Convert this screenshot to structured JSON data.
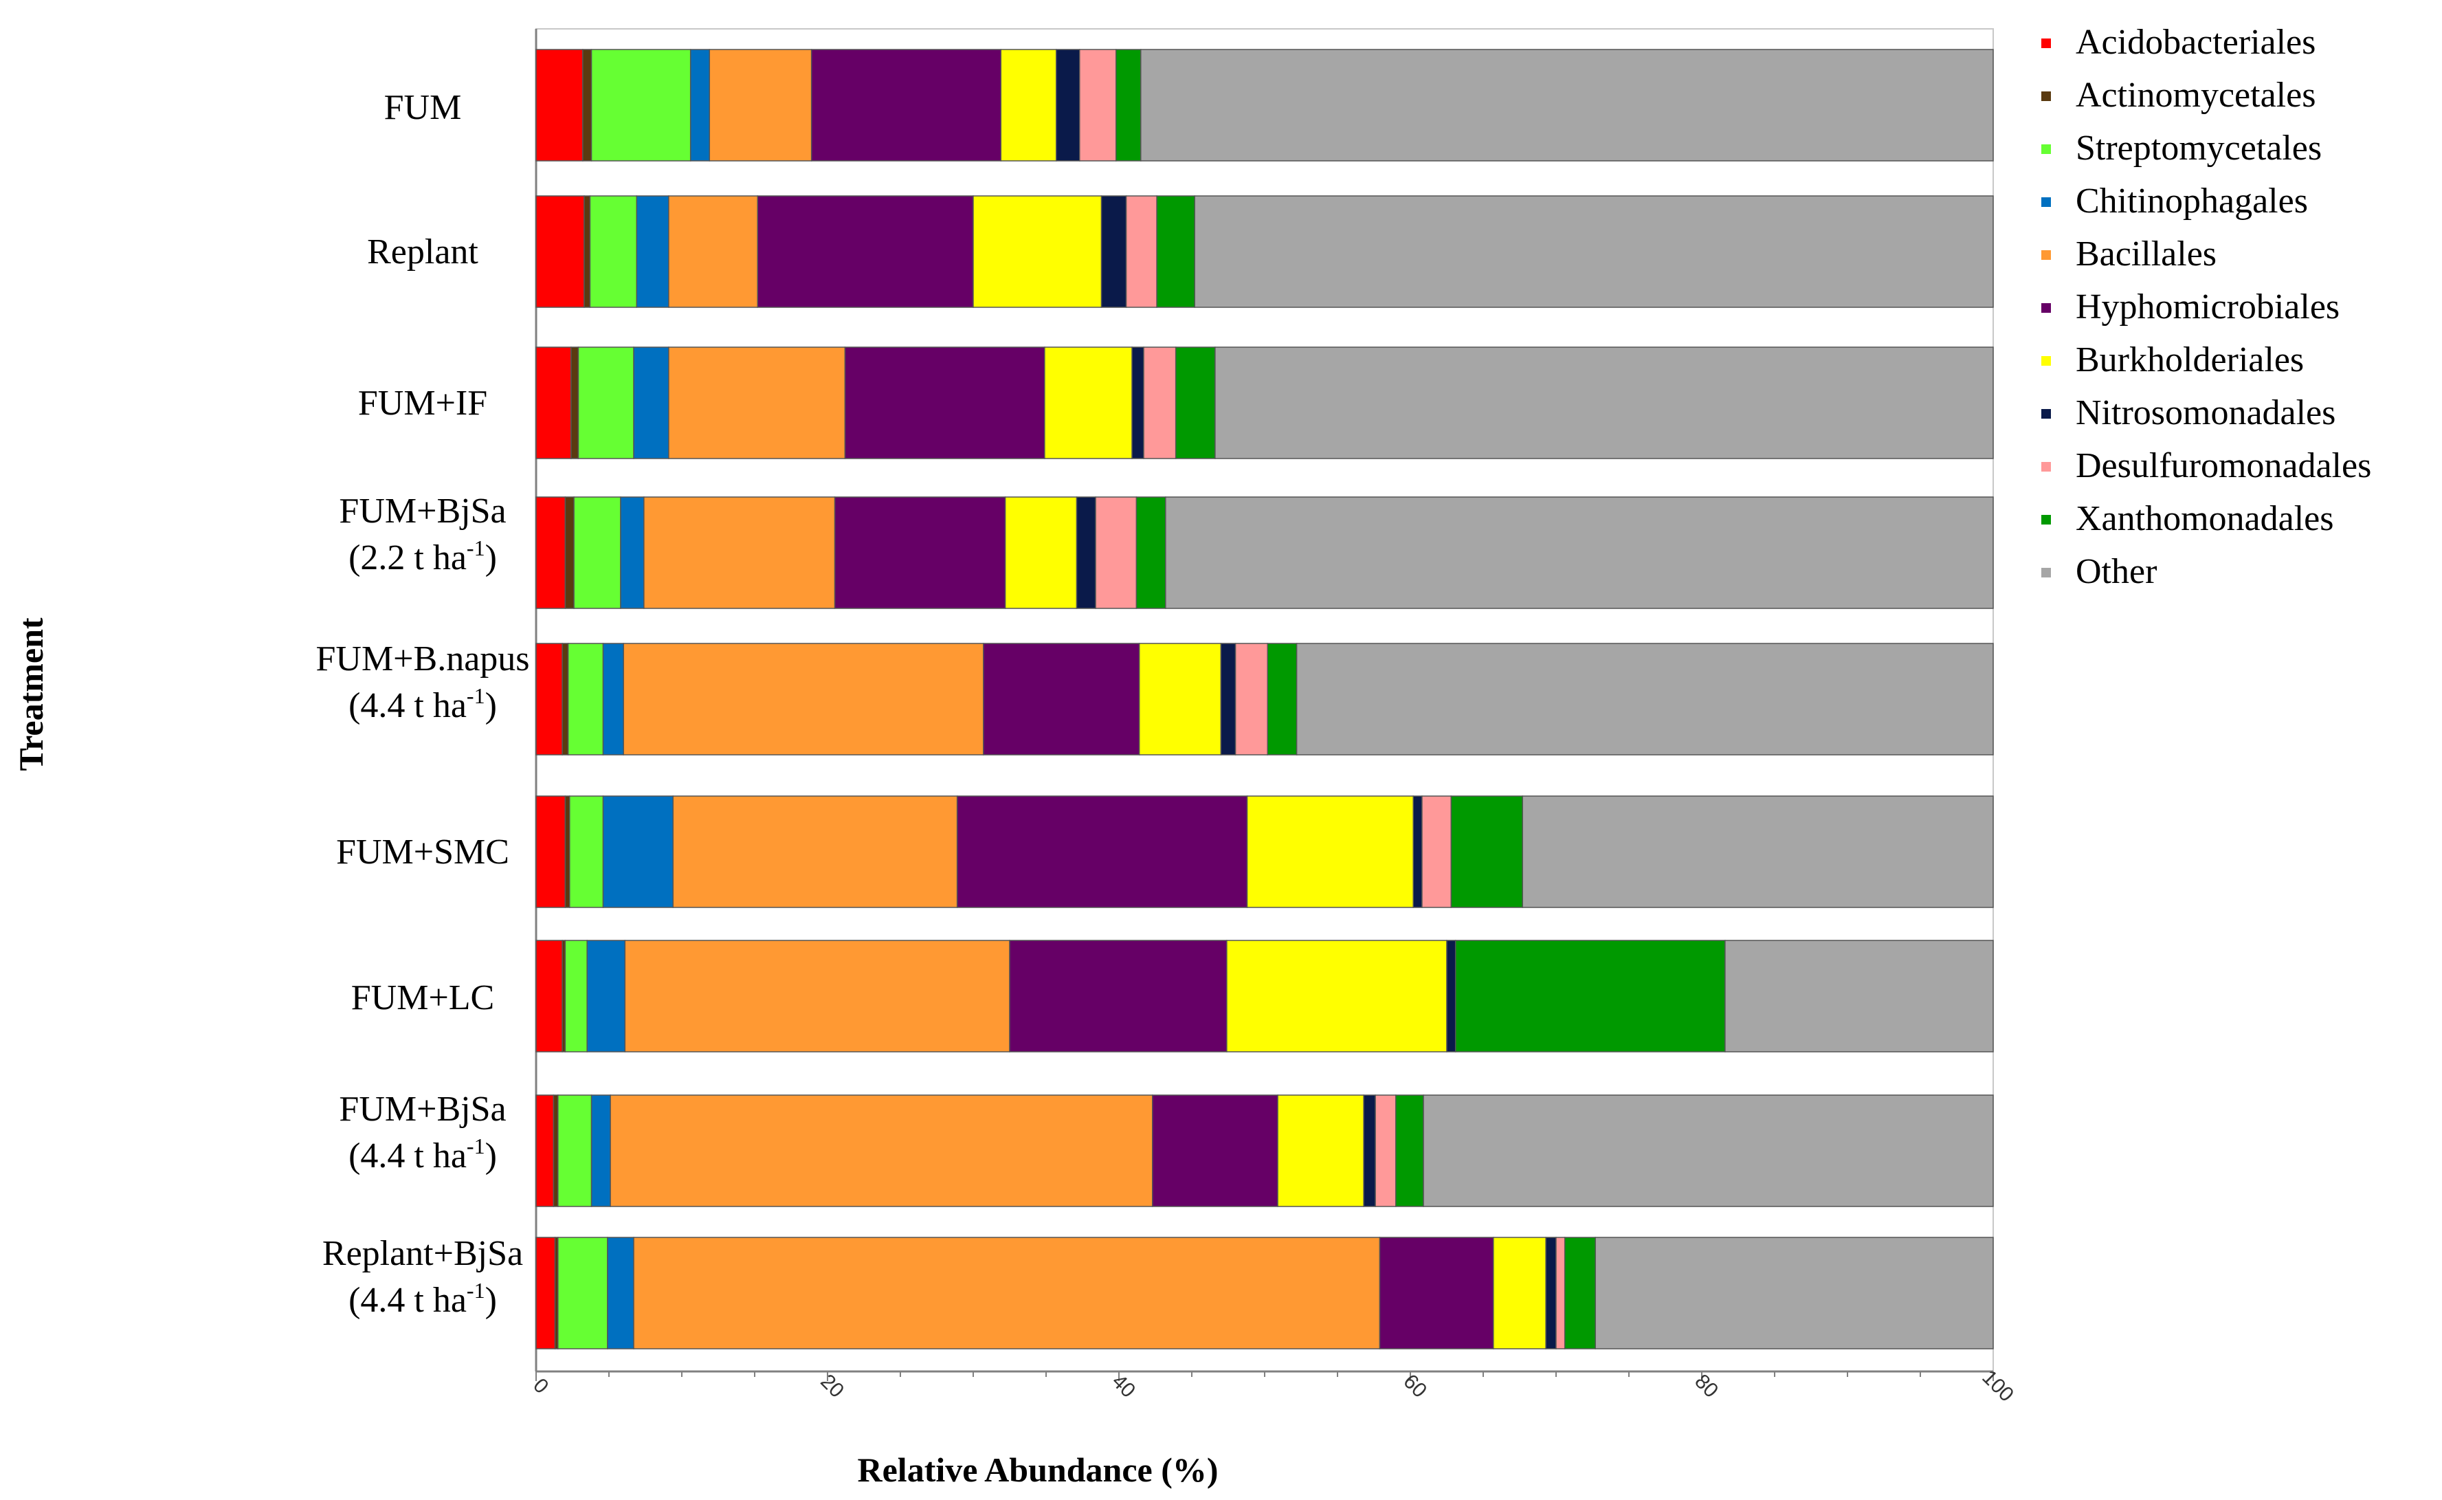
{
  "chart_data": {
    "type": "bar",
    "orientation": "horizontal",
    "stacked": true,
    "title": "",
    "xlabel": "Relative Abundance  (%)",
    "ylabel": "Treatment",
    "xlim": [
      0,
      100
    ],
    "xticks": [
      0,
      20,
      40,
      60,
      80,
      100
    ],
    "grid": false,
    "legend_position": "right",
    "categories": [
      {
        "label": "FUM",
        "line2": ""
      },
      {
        "label": "Replant",
        "line2": ""
      },
      {
        "label": "FUM+IF",
        "line2": ""
      },
      {
        "label": "FUM+BjSa",
        "line2": "(2.2 t ha-1)"
      },
      {
        "label": "FUM+B.napus",
        "line2": "(4.4 t ha-1)"
      },
      {
        "label": "FUM+SMC",
        "line2": ""
      },
      {
        "label": "FUM+LC",
        "line2": ""
      },
      {
        "label": "FUM+BjSa",
        "line2": "(4.4 t ha-1)"
      },
      {
        "label": "Replant+BjSa",
        "line2": "(4.4 t ha-1)"
      }
    ],
    "series": [
      {
        "name": "Acidobacteriales",
        "color": "#ff0000",
        "values": [
          3.2,
          3.3,
          2.4,
          2.0,
          1.8,
          2.0,
          1.8,
          1.2,
          1.3
        ]
      },
      {
        "name": "Actinomycetales",
        "color": "#5a3a10",
        "values": [
          0.6,
          0.4,
          0.5,
          0.6,
          0.4,
          0.3,
          0.2,
          0.3,
          0.2
        ]
      },
      {
        "name": "Streptomycetales",
        "color": "#66ff33",
        "values": [
          6.8,
          3.2,
          3.8,
          3.2,
          2.4,
          2.3,
          1.5,
          2.3,
          3.4
        ]
      },
      {
        "name": "Chitinophagales",
        "color": "#0070c0",
        "values": [
          1.3,
          2.2,
          2.4,
          1.6,
          1.4,
          4.8,
          2.6,
          1.3,
          1.8
        ]
      },
      {
        "name": "Bacillales",
        "color": "#ff9933",
        "values": [
          7.0,
          6.1,
          12.1,
          13.1,
          24.7,
          19.5,
          26.4,
          37.2,
          51.2
        ]
      },
      {
        "name": "Hyphomicrobiales",
        "color": "#660066",
        "values": [
          13.0,
          14.8,
          13.7,
          11.7,
          10.7,
          19.9,
          14.9,
          8.6,
          7.8
        ]
      },
      {
        "name": "Burkholderiales",
        "color": "#ffff00",
        "values": [
          3.8,
          8.8,
          6.0,
          4.9,
          5.6,
          11.4,
          15.1,
          5.9,
          3.6
        ]
      },
      {
        "name": "Nitrosomonadales",
        "color": "#0a1a4a",
        "values": [
          1.6,
          1.7,
          0.8,
          1.3,
          1.0,
          0.6,
          0.6,
          0.8,
          0.7
        ]
      },
      {
        "name": "Desulfuromonadales",
        "color": "#ff9999",
        "values": [
          2.5,
          2.1,
          2.2,
          2.8,
          2.2,
          2.0,
          0.0,
          1.4,
          0.6
        ]
      },
      {
        "name": "Xanthomonadales",
        "color": "#009900",
        "values": [
          1.7,
          2.6,
          2.7,
          2.0,
          2.0,
          4.9,
          18.5,
          1.9,
          2.1
        ]
      },
      {
        "name": "Other",
        "color": "#a6a6a6",
        "values": [
          58.5,
          54.8,
          53.4,
          56.8,
          47.8,
          32.3,
          18.4,
          39.1,
          27.3
        ]
      }
    ]
  }
}
